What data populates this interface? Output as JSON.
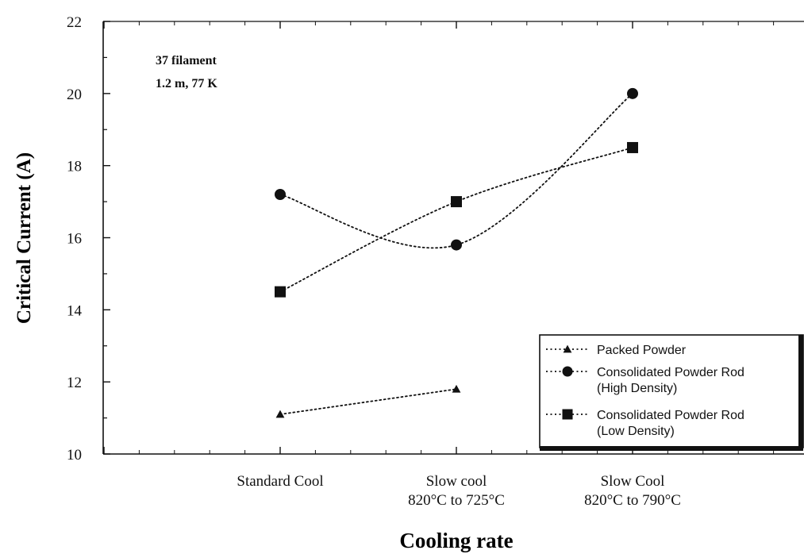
{
  "chart_data": {
    "type": "line",
    "xlabel": "Cooling rate",
    "ylabel": "Critical Current (A)",
    "ylim": [
      10,
      22
    ],
    "yticks": [
      10,
      12,
      14,
      16,
      18,
      20,
      22
    ],
    "categories": [
      [
        "Standard Cool"
      ],
      [
        "Slow cool",
        "820°C to 725°C"
      ],
      [
        "Slow Cool",
        "820°C to 790°C"
      ]
    ],
    "annotation": [
      "37 filament",
      "1.2 m, 77 K"
    ],
    "grid": false,
    "legend_position": "bottom-right",
    "series": [
      {
        "name": [
          "Packed Powder"
        ],
        "marker": "triangle",
        "values": [
          11.1,
          11.8,
          null
        ]
      },
      {
        "name": [
          "Consolidated Powder Rod",
          "(High Density)"
        ],
        "marker": "circle",
        "values": [
          17.2,
          15.8,
          20.0
        ]
      },
      {
        "name": [
          "Consolidated Powder Rod",
          "(Low Density)"
        ],
        "marker": "square",
        "values": [
          14.5,
          17.0,
          18.5
        ]
      }
    ],
    "colors": {
      "ink": "#111111"
    }
  }
}
